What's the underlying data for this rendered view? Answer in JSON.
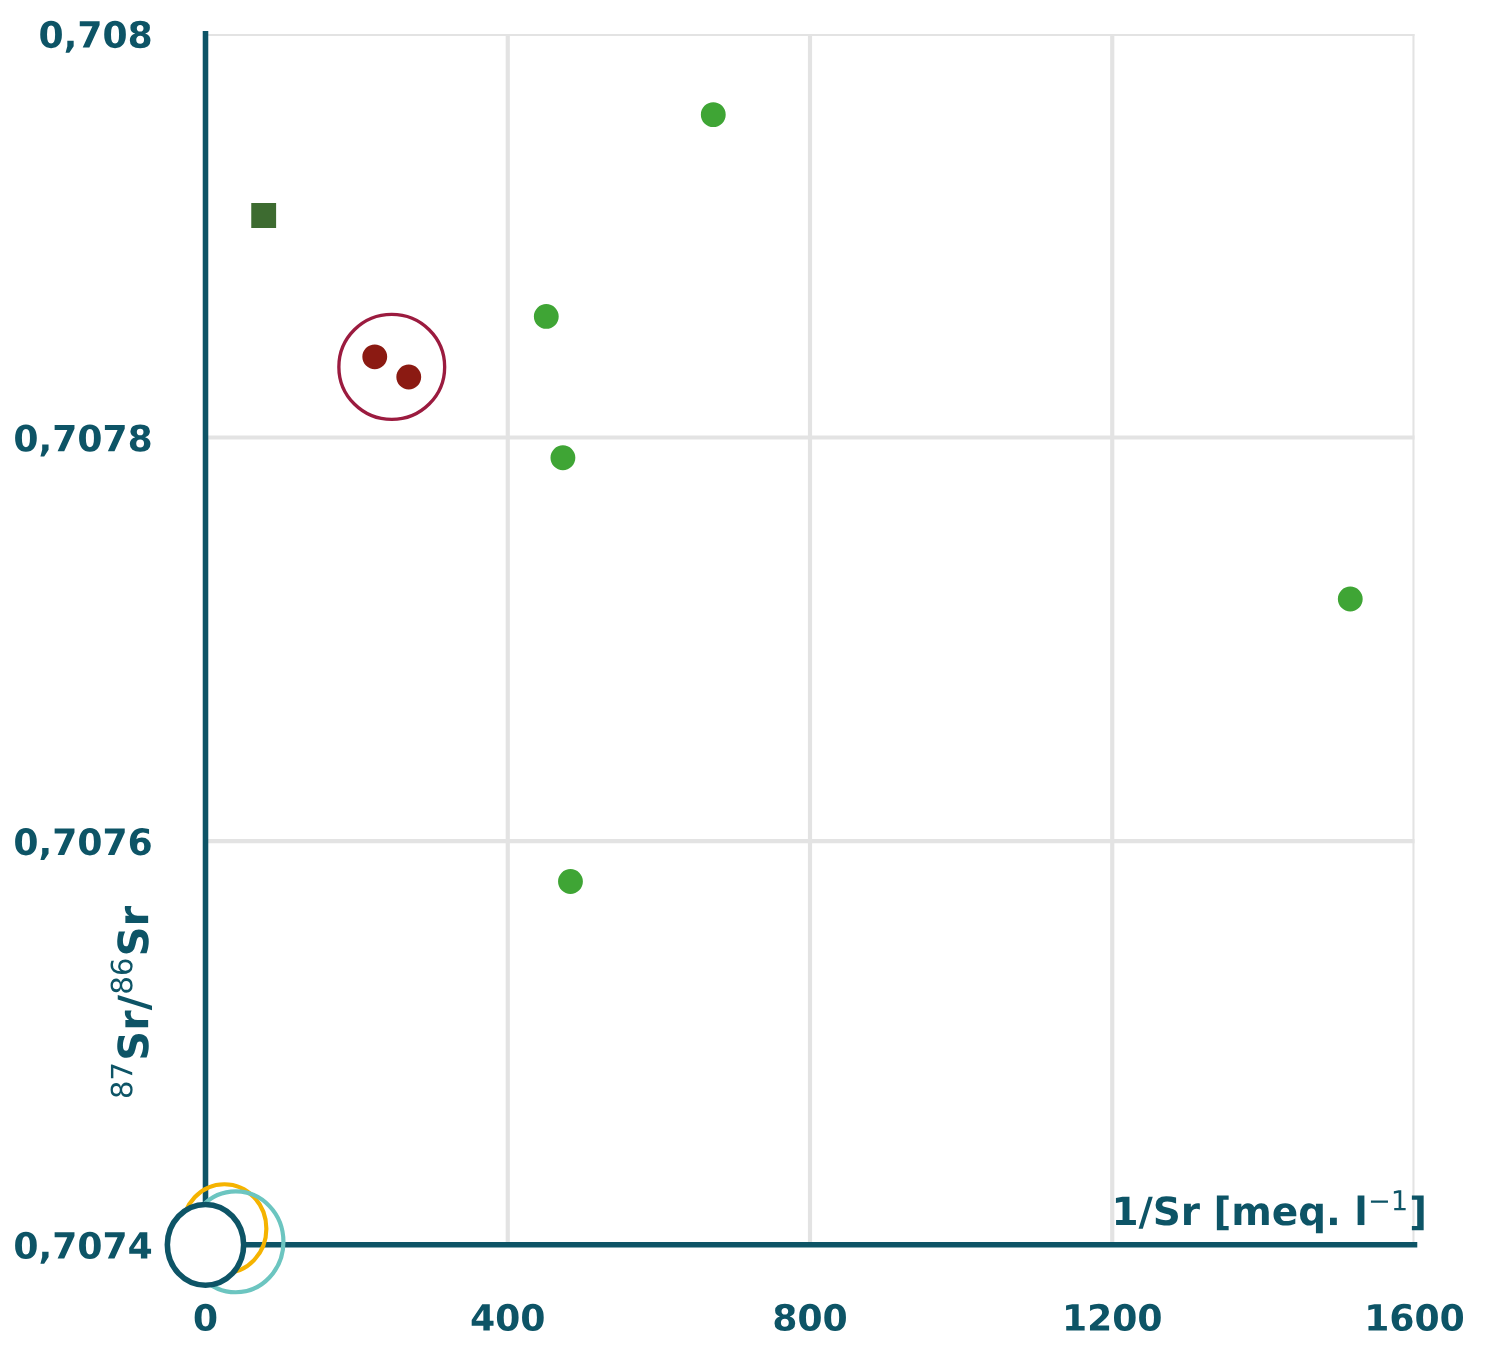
{
  "chart_data": {
    "type": "scatter",
    "xlabel": "1/Sr [meq. l$^{−1}$]",
    "ylabel": "$^{87}$Sr/$^{86}$Sr",
    "series": [
      {
        "color": "#3fa535",
        "marker": "circle",
        "x": [
          672,
          451,
          473,
          483,
          1515
        ],
        "values": [
          0.70796,
          0.70786,
          0.70779,
          0.70758,
          0.70772
        ]
      },
      {
        "color": "#3d6b30",
        "marker": "square",
        "x": [
          77
        ],
        "values": [
          0.70791
        ]
      },
      {
        "color": "#8b1a12",
        "marker": "circle",
        "x": [
          224,
          269
        ],
        "values": [
          0.70784,
          0.70783
        ]
      }
    ],
    "xlim": [
      0,
      1600
    ],
    "ylim": [
      0.7074,
      0.708
    ],
    "xticks": [
      0,
      400,
      800,
      1200,
      1600
    ],
    "yticks": [
      {
        "value": 0.7074,
        "label": "0,7074"
      },
      {
        "value": 0.7076,
        "label": "0,7076"
      },
      {
        "value": 0.7078,
        "label": "0,7078"
      },
      {
        "value": 0.708,
        "label": "0,708"
      }
    ],
    "grid": true,
    "legend": false
  }
}
